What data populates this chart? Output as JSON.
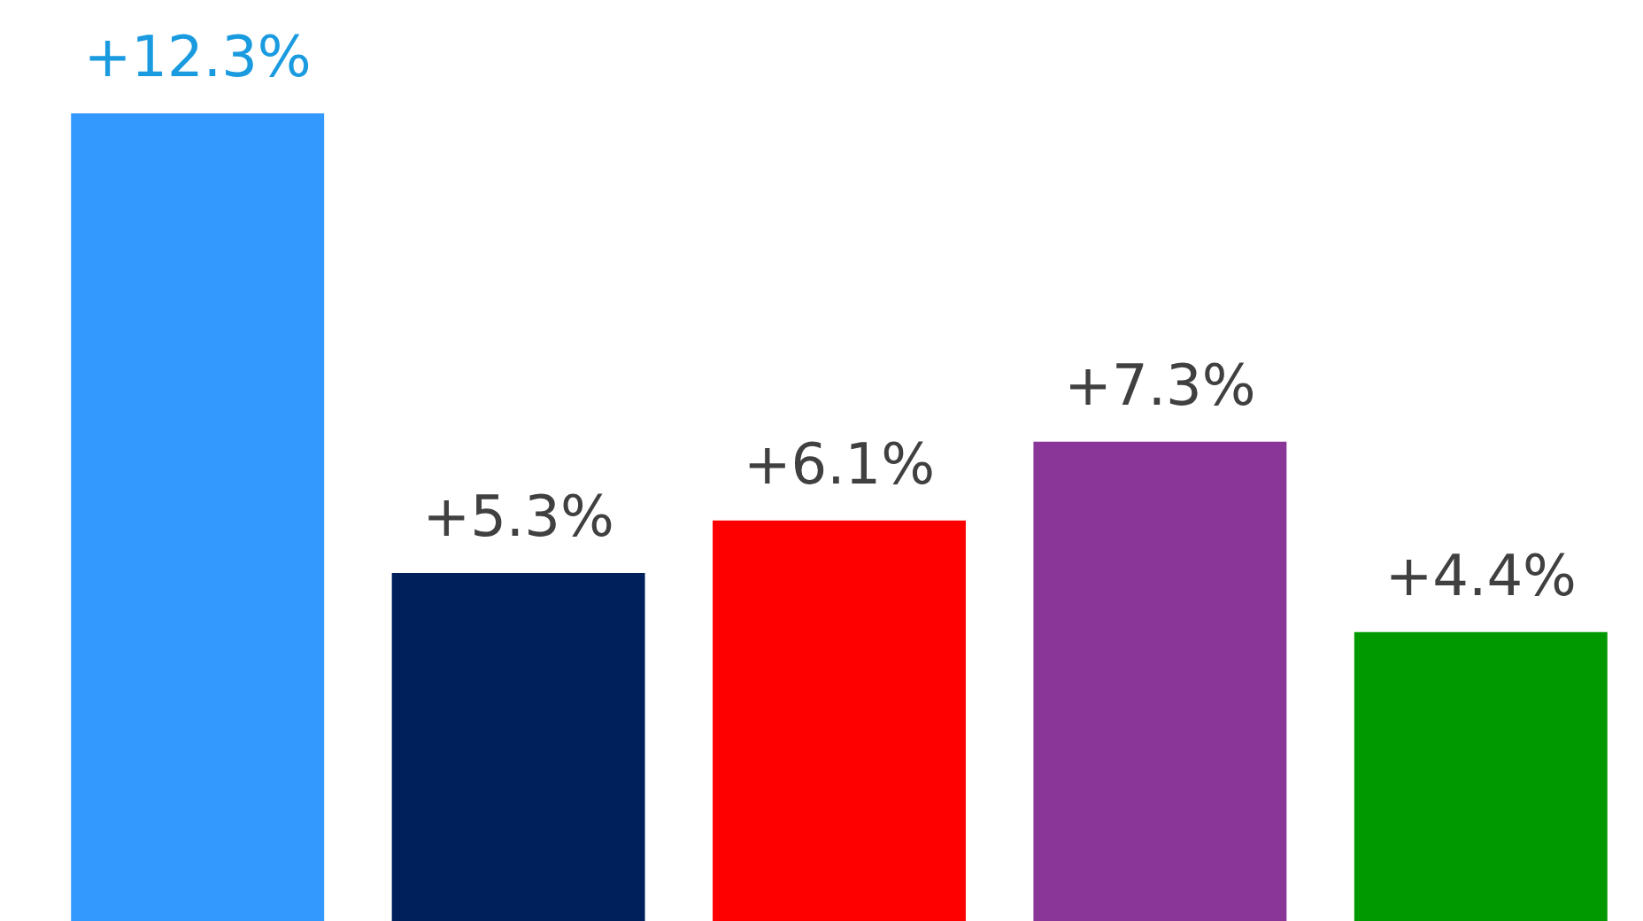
{
  "chart_data": {
    "type": "bar",
    "categories": [
      null,
      null,
      null,
      null,
      null
    ],
    "values": [
      12.3,
      5.3,
      6.1,
      7.3,
      4.4
    ],
    "colors": [
      "#3399ff",
      "#00205b",
      "#ff0000",
      "#8a3598",
      "#009900"
    ],
    "value_labels": [
      "+12.3%",
      "+5.3%",
      "+6.1%",
      "+7.3%",
      "+4.4%"
    ]
  }
}
